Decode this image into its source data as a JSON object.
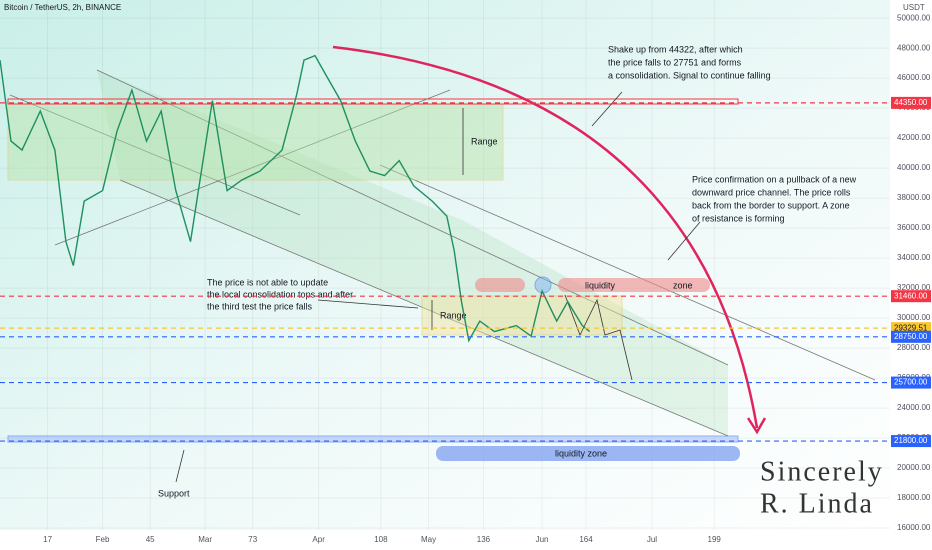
{
  "chart_data": {
    "type": "line",
    "title": "Bitcoin / TetherUS, 2h, BINANCE",
    "y_axis_label": "USDT",
    "color": "#1f8f5f",
    "x": [
      4,
      7,
      10,
      15,
      19,
      22,
      24,
      27,
      32,
      36,
      40,
      44,
      48,
      52,
      56,
      59,
      62,
      66,
      70,
      75,
      81,
      85,
      87,
      90,
      93,
      97,
      101,
      105,
      109,
      113,
      117,
      122,
      126,
      128,
      130,
      132,
      135,
      139,
      145,
      149,
      152,
      156,
      159,
      163,
      165
    ],
    "values": [
      47200,
      41800,
      41200,
      43800,
      41200,
      35100,
      33500,
      37800,
      38500,
      42500,
      45200,
      41800,
      43800,
      38500,
      35100,
      39800,
      44500,
      38500,
      39200,
      39800,
      41200,
      44900,
      47200,
      47500,
      46200,
      44500,
      41800,
      39800,
      39500,
      40500,
      38800,
      37800,
      36800,
      34500,
      31100,
      28500,
      29800,
      29100,
      29500,
      28800,
      31800,
      29800,
      31100,
      29500,
      29100
    ],
    "xlim": [
      4,
      247
    ],
    "xticks": [
      17,
      {
        "value": 32,
        "label": "Feb"
      },
      45,
      {
        "value": 60,
        "label": "Mar"
      },
      73,
      {
        "value": 91,
        "label": "Apr"
      },
      108,
      {
        "value": 121,
        "label": "May"
      },
      136,
      {
        "value": 152,
        "label": "Jun"
      },
      164,
      {
        "value": 182,
        "label": "Jul"
      },
      199
    ],
    "ylim": [
      15870,
      51210
    ],
    "yticks": [
      {
        "value": 16000,
        "label": "16000.00"
      },
      {
        "value": 18000,
        "label": "18000.00"
      },
      {
        "value": 20000,
        "label": "20000.00"
      },
      {
        "value": 22000,
        "label": "22000.00"
      },
      {
        "value": 24000,
        "label": "24000.00"
      },
      {
        "value": 26000,
        "label": "26000.00"
      },
      {
        "value": 28000,
        "label": "28000.00"
      },
      {
        "value": 30000,
        "label": "30000.00"
      },
      {
        "value": 32000,
        "label": "32000.00"
      },
      {
        "value": 34000,
        "label": "34000.00"
      },
      {
        "value": 36000,
        "label": "36000.00"
      },
      {
        "value": 38000,
        "label": "38000.00"
      },
      {
        "value": 40000,
        "label": "40000.00"
      },
      {
        "value": 42000,
        "label": "42000.00"
      },
      {
        "value": 44000,
        "label": "44000.00"
      },
      {
        "value": 46000,
        "label": "46000.00"
      },
      {
        "value": 48000,
        "label": "48000.00"
      },
      {
        "value": 50000,
        "label": "50000.00"
      }
    ],
    "grid": true,
    "levels": [
      {
        "value": 44350,
        "label": "44350.00",
        "color": "#f23645"
      },
      {
        "value": 31460,
        "label": "31460.00",
        "color": "#f23645"
      },
      {
        "value": 29329.51,
        "label": "29329.51",
        "color": "#f9c531"
      },
      {
        "value": 28750,
        "label": "28750.00",
        "color": "#2962ff"
      },
      {
        "value": 25700,
        "label": "25700.00",
        "color": "#2962ff"
      },
      {
        "value": 21800,
        "label": "21800.00",
        "color": "#2962ff"
      }
    ],
    "annotations": {
      "shake_up": [
        "Shake up from 44322, after which",
        "the price falls to 27751 and forms",
        "a consolidation. Signal to continue falling"
      ],
      "confirmation": [
        "Price confirmation on a pullback of a new",
        "downward price channel. The price rolls",
        "back from the border to support. A zone",
        "of resistance is forming"
      ],
      "consolidation": [
        "The price is not able to update",
        "the local consolidation tops and after",
        "the third test the price falls"
      ],
      "range_top": "Range",
      "range_bottom": "Range",
      "liquidity_top_1": "liquidity",
      "liquidity_top_2": "zone",
      "liquidity_bottom": "liquidity zone",
      "support": "Support",
      "signature": [
        "Sincerely",
        "R. Linda"
      ]
    }
  }
}
